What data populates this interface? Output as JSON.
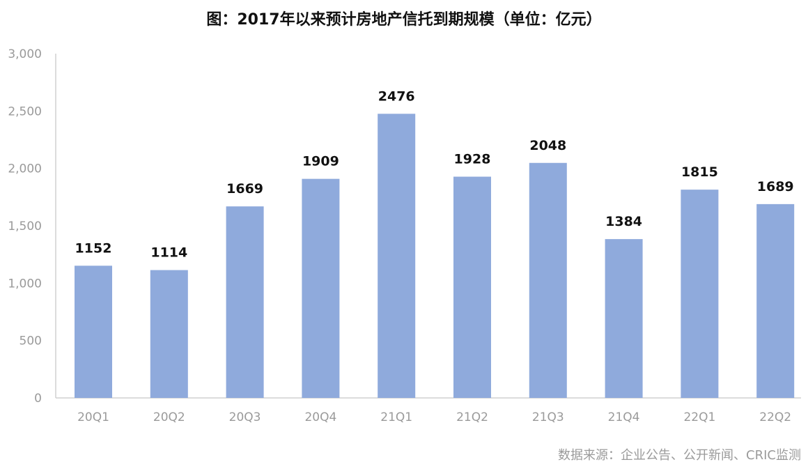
{
  "chart_data": {
    "type": "bar",
    "title": "图：2017年以来预计房地产信托到期规模（单位：亿元）",
    "categories": [
      "20Q1",
      "20Q2",
      "20Q3",
      "20Q4",
      "21Q1",
      "21Q2",
      "21Q3",
      "21Q4",
      "22Q1",
      "22Q2"
    ],
    "values": [
      1152,
      1114,
      1669,
      1909,
      2476,
      1928,
      2048,
      1384,
      1815,
      1689
    ],
    "data_labels": [
      "1152",
      "1114",
      "1669",
      "1909",
      "2476",
      "1928",
      "2048",
      "1384",
      "1815",
      "1689"
    ],
    "yticks": [
      "0",
      "500",
      "1,000",
      "1,500",
      "2,000",
      "2,500",
      "3,000"
    ],
    "ylim": [
      0,
      3000
    ],
    "xlabel": "",
    "ylabel": "",
    "grid": false,
    "legend": "none",
    "bar_color": "#8faadc"
  },
  "source": "数据来源：企业公告、公开新闻、CRIC监测"
}
